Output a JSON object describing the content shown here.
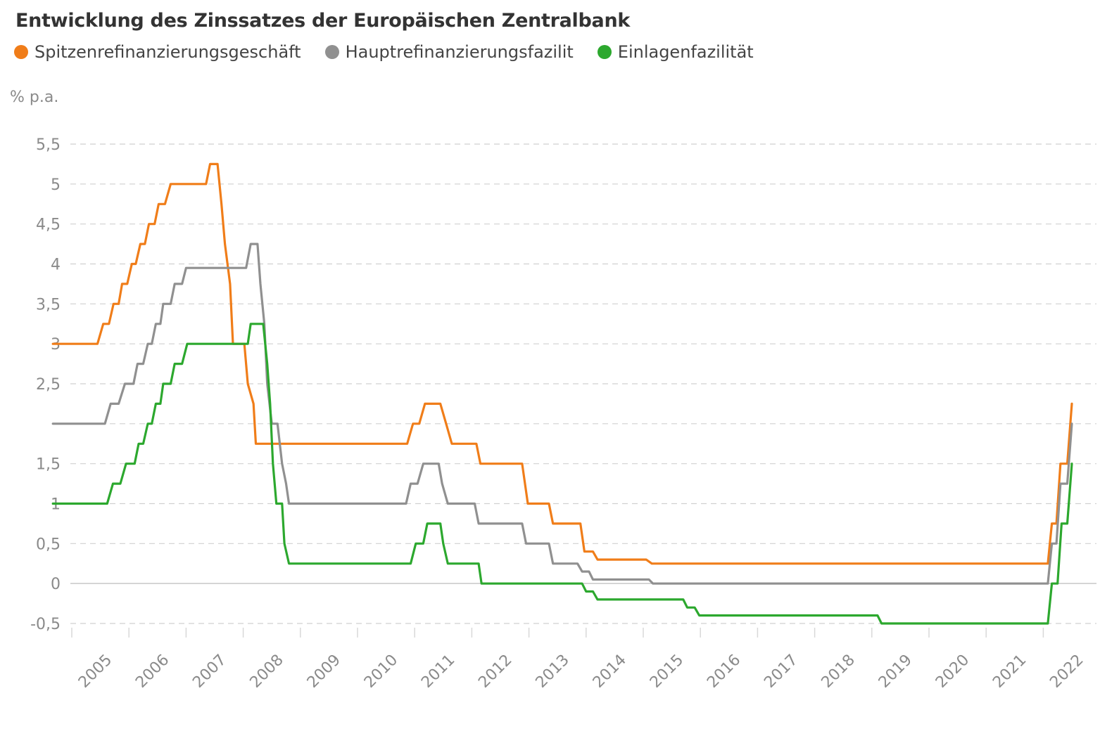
{
  "chart_data": {
    "type": "line",
    "title": "Entwicklung des Zinssatzes der Europäischen Zentralbank",
    "ylabel": "% p.a.",
    "xlabel": "",
    "xlim": [
      2004.7,
      2022.7
    ],
    "ylim": [
      -0.5,
      5.5
    ],
    "y_ticks": [
      {
        "value": 5.5,
        "label": "5,5"
      },
      {
        "value": 5,
        "label": "5"
      },
      {
        "value": 4.5,
        "label": "4,5"
      },
      {
        "value": 4,
        "label": "4"
      },
      {
        "value": 3.5,
        "label": "3,5"
      },
      {
        "value": 3,
        "label": "3"
      },
      {
        "value": 2.5,
        "label": "2,5"
      },
      {
        "value": 2,
        "label": ""
      },
      {
        "value": 1.5,
        "label": "1,5"
      },
      {
        "value": 1,
        "label": "1"
      },
      {
        "value": 0.5,
        "label": "0,5"
      },
      {
        "value": 0,
        "label": "0"
      },
      {
        "value": -0.5,
        "label": "-0,5"
      }
    ],
    "x_ticks": [
      {
        "value": 2005,
        "label": "2005"
      },
      {
        "value": 2006,
        "label": "2006"
      },
      {
        "value": 2007,
        "label": "2007"
      },
      {
        "value": 2008,
        "label": "2008"
      },
      {
        "value": 2009,
        "label": "2009"
      },
      {
        "value": 2010,
        "label": "2010"
      },
      {
        "value": 2011,
        "label": "2011"
      },
      {
        "value": 2012,
        "label": "2012"
      },
      {
        "value": 2013,
        "label": "2013"
      },
      {
        "value": 2014,
        "label": "2014"
      },
      {
        "value": 2015,
        "label": "2015"
      },
      {
        "value": 2016,
        "label": "2016"
      },
      {
        "value": 2017,
        "label": "2017"
      },
      {
        "value": 2018,
        "label": "2018"
      },
      {
        "value": 2019,
        "label": "2019"
      },
      {
        "value": 2020,
        "label": "2020"
      },
      {
        "value": 2021,
        "label": "2021"
      },
      {
        "value": 2022,
        "label": "2022"
      }
    ],
    "legend_position": "top-left",
    "grid": true,
    "series": [
      {
        "name": "Spitzenrefinanzierungsgeschäft",
        "color": "#f07d19",
        "points": [
          [
            2004.67,
            3.0
          ],
          [
            2005.45,
            3.0
          ],
          [
            2005.55,
            3.25
          ],
          [
            2005.65,
            3.25
          ],
          [
            2005.73,
            3.5
          ],
          [
            2005.82,
            3.5
          ],
          [
            2005.88,
            3.75
          ],
          [
            2005.97,
            3.75
          ],
          [
            2006.05,
            4.0
          ],
          [
            2006.12,
            4.0
          ],
          [
            2006.2,
            4.25
          ],
          [
            2006.28,
            4.25
          ],
          [
            2006.35,
            4.5
          ],
          [
            2006.45,
            4.5
          ],
          [
            2006.52,
            4.75
          ],
          [
            2006.63,
            4.75
          ],
          [
            2006.73,
            5.0
          ],
          [
            2007.35,
            5.0
          ],
          [
            2007.42,
            5.25
          ],
          [
            2007.55,
            5.25
          ],
          [
            2007.62,
            4.75
          ],
          [
            2007.68,
            4.25
          ],
          [
            2007.77,
            3.75
          ],
          [
            2007.82,
            3.0
          ],
          [
            2008.02,
            3.0
          ],
          [
            2008.08,
            2.5
          ],
          [
            2008.18,
            2.25
          ],
          [
            2008.22,
            1.75
          ],
          [
            2010.87,
            1.75
          ],
          [
            2010.97,
            2.0
          ],
          [
            2011.08,
            2.0
          ],
          [
            2011.18,
            2.25
          ],
          [
            2011.45,
            2.25
          ],
          [
            2011.55,
            2.0
          ],
          [
            2011.65,
            1.75
          ],
          [
            2012.08,
            1.75
          ],
          [
            2012.15,
            1.5
          ],
          [
            2012.88,
            1.5
          ],
          [
            2012.98,
            1.0
          ],
          [
            2013.35,
            1.0
          ],
          [
            2013.42,
            0.75
          ],
          [
            2013.9,
            0.75
          ],
          [
            2013.97,
            0.4
          ],
          [
            2014.12,
            0.4
          ],
          [
            2014.2,
            0.3
          ],
          [
            2015.05,
            0.3
          ],
          [
            2015.15,
            0.25
          ],
          [
            2021.55,
            0.25
          ],
          [
            2022.08,
            0.25
          ],
          [
            2022.15,
            0.75
          ],
          [
            2022.23,
            0.75
          ],
          [
            2022.3,
            1.5
          ],
          [
            2022.42,
            1.5
          ],
          [
            2022.5,
            2.25
          ]
        ]
      },
      {
        "name": "Hauptrefinanzierungsfazilit",
        "color": "#909090",
        "points": [
          [
            2004.67,
            2.0
          ],
          [
            2005.58,
            2.0
          ],
          [
            2005.68,
            2.25
          ],
          [
            2005.82,
            2.25
          ],
          [
            2005.93,
            2.5
          ],
          [
            2006.08,
            2.5
          ],
          [
            2006.15,
            2.75
          ],
          [
            2006.25,
            2.75
          ],
          [
            2006.33,
            3.0
          ],
          [
            2006.4,
            3.0
          ],
          [
            2006.47,
            3.25
          ],
          [
            2006.55,
            3.25
          ],
          [
            2006.6,
            3.5
          ],
          [
            2006.73,
            3.5
          ],
          [
            2006.8,
            3.75
          ],
          [
            2006.93,
            3.75
          ],
          [
            2007.0,
            3.95
          ],
          [
            2008.05,
            3.95
          ],
          [
            2008.13,
            4.25
          ],
          [
            2008.25,
            4.25
          ],
          [
            2008.3,
            3.75
          ],
          [
            2008.37,
            3.25
          ],
          [
            2008.42,
            2.5
          ],
          [
            2008.5,
            2.0
          ],
          [
            2008.6,
            2.0
          ],
          [
            2008.68,
            1.5
          ],
          [
            2008.75,
            1.25
          ],
          [
            2008.8,
            1.0
          ],
          [
            2010.85,
            1.0
          ],
          [
            2010.93,
            1.25
          ],
          [
            2011.05,
            1.25
          ],
          [
            2011.15,
            1.5
          ],
          [
            2011.42,
            1.5
          ],
          [
            2011.48,
            1.25
          ],
          [
            2011.58,
            1.0
          ],
          [
            2012.05,
            1.0
          ],
          [
            2012.12,
            0.75
          ],
          [
            2012.88,
            0.75
          ],
          [
            2012.95,
            0.5
          ],
          [
            2013.35,
            0.5
          ],
          [
            2013.42,
            0.25
          ],
          [
            2013.85,
            0.25
          ],
          [
            2013.93,
            0.15
          ],
          [
            2014.05,
            0.15
          ],
          [
            2014.12,
            0.05
          ],
          [
            2015.1,
            0.05
          ],
          [
            2015.17,
            0.0
          ],
          [
            2022.08,
            0.0
          ],
          [
            2022.15,
            0.5
          ],
          [
            2022.23,
            0.5
          ],
          [
            2022.3,
            1.25
          ],
          [
            2022.42,
            1.25
          ],
          [
            2022.5,
            2.0
          ]
        ]
      },
      {
        "name": "Einlagenfazilität",
        "color": "#2ca82e",
        "points": [
          [
            2004.67,
            1.0
          ],
          [
            2005.62,
            1.0
          ],
          [
            2005.72,
            1.25
          ],
          [
            2005.85,
            1.25
          ],
          [
            2005.95,
            1.5
          ],
          [
            2006.1,
            1.5
          ],
          [
            2006.17,
            1.75
          ],
          [
            2006.25,
            1.75
          ],
          [
            2006.33,
            2.0
          ],
          [
            2006.4,
            2.0
          ],
          [
            2006.47,
            2.25
          ],
          [
            2006.55,
            2.25
          ],
          [
            2006.6,
            2.5
          ],
          [
            2006.73,
            2.5
          ],
          [
            2006.8,
            2.75
          ],
          [
            2006.93,
            2.75
          ],
          [
            2007.02,
            3.0
          ],
          [
            2008.08,
            3.0
          ],
          [
            2008.13,
            3.25
          ],
          [
            2008.35,
            3.25
          ],
          [
            2008.42,
            2.75
          ],
          [
            2008.47,
            2.25
          ],
          [
            2008.52,
            1.5
          ],
          [
            2008.58,
            1.0
          ],
          [
            2008.68,
            1.0
          ],
          [
            2008.72,
            0.5
          ],
          [
            2008.8,
            0.25
          ],
          [
            2010.93,
            0.25
          ],
          [
            2011.02,
            0.5
          ],
          [
            2011.15,
            0.5
          ],
          [
            2011.22,
            0.75
          ],
          [
            2011.45,
            0.75
          ],
          [
            2011.5,
            0.5
          ],
          [
            2011.58,
            0.25
          ],
          [
            2012.12,
            0.25
          ],
          [
            2012.17,
            0.0
          ],
          [
            2013.93,
            0.0
          ],
          [
            2014.0,
            -0.1
          ],
          [
            2014.12,
            -0.1
          ],
          [
            2014.2,
            -0.2
          ],
          [
            2015.7,
            -0.2
          ],
          [
            2015.77,
            -0.3
          ],
          [
            2015.9,
            -0.3
          ],
          [
            2015.98,
            -0.4
          ],
          [
            2019.1,
            -0.4
          ],
          [
            2019.17,
            -0.5
          ],
          [
            2022.08,
            -0.5
          ],
          [
            2022.15,
            0.0
          ],
          [
            2022.25,
            0.0
          ],
          [
            2022.32,
            0.75
          ],
          [
            2022.42,
            0.75
          ],
          [
            2022.5,
            1.5
          ]
        ]
      }
    ]
  }
}
